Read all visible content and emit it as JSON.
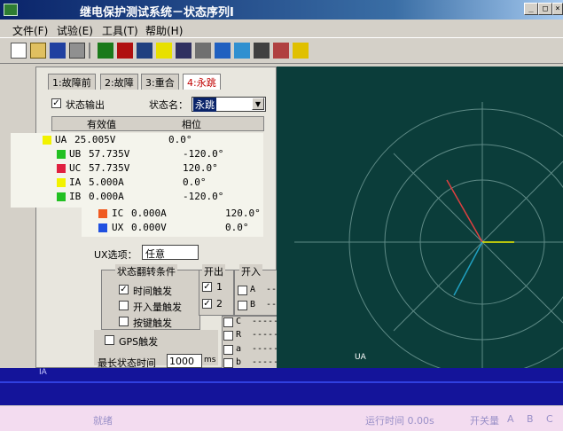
{
  "window": {
    "title": "继电保护测试系统－状态序列Ⅰ",
    "controls": [
      "minimize",
      "maximize",
      "close"
    ]
  },
  "menu": {
    "items": [
      {
        "label": "文件(F)"
      },
      {
        "label": "试验(E)"
      },
      {
        "label": "工具(T)"
      },
      {
        "label": "帮助(H)"
      }
    ]
  },
  "toolbar": {
    "icons": [
      "new-icon",
      "open-icon",
      "save-icon",
      "print-icon",
      "separator",
      "run-icon",
      "stop-icon",
      "pause-icon",
      "undo-icon",
      "redo-icon",
      "settings-icon",
      "chart-icon",
      "calc-icon",
      "report-icon",
      "tools-icon",
      "help-icon"
    ]
  },
  "tabs": [
    {
      "label": "1:故障前"
    },
    {
      "label": "2:故障"
    },
    {
      "label": "3:重合"
    },
    {
      "label": "4:永跳",
      "active": true
    }
  ],
  "state_output": {
    "label": "状态输出",
    "checked": true
  },
  "state_name": {
    "label": "状态名：",
    "value": "永跳"
  },
  "table": {
    "headers": [
      "有效值",
      "相位"
    ],
    "rows": [
      {
        "name": "UA",
        "value": "25.005V",
        "phase": "0.0°",
        "color": "#f2f200"
      },
      {
        "name": "UB",
        "value": "57.735V",
        "phase": "-120.0°",
        "color": "#22c022"
      },
      {
        "name": "UC",
        "value": "57.735V",
        "phase": "120.0°",
        "color": "#e02040"
      },
      {
        "name": "IA",
        "value": "5.000A",
        "phase": "0.0°",
        "color": "#f2f200"
      },
      {
        "name": "IB",
        "value": "0.000A",
        "phase": "-120.0°",
        "color": "#22c022"
      },
      {
        "name": "IC",
        "value": "0.000A",
        "phase": "120.0°",
        "color": "#f05a20"
      },
      {
        "name": "UX",
        "value": "0.000V",
        "phase": "0.0°",
        "color": "#2050e0"
      }
    ]
  },
  "ux_option": {
    "label": "UX选项：",
    "value": "任意"
  },
  "trigger": {
    "group_label": "状态翻转条件",
    "options": [
      {
        "label": "时间触发",
        "checked": true
      },
      {
        "label": "开入量触发",
        "checked": false
      },
      {
        "label": "按键触发",
        "checked": false
      },
      {
        "label": "GPS触发",
        "checked": false
      }
    ],
    "max_time_label": "最长状态时间",
    "max_time_value": "1000",
    "max_time_unit": "ms"
  },
  "binary_out": {
    "group_label": "开出",
    "items": [
      {
        "label": "1",
        "checked": true
      },
      {
        "label": "2",
        "checked": true
      }
    ]
  },
  "binary_in": {
    "group_label": "开入",
    "rows": [
      {
        "label": "A",
        "value": "------ms"
      },
      {
        "label": "B",
        "value": "------ms"
      },
      {
        "label": "C",
        "value": "------ms"
      },
      {
        "label": "R",
        "value": "------ms"
      },
      {
        "label": "a",
        "value": "------ms"
      },
      {
        "label": "b",
        "value": "------ms"
      }
    ]
  },
  "waveform": {
    "label_left": "IA",
    "label_right": "UA"
  },
  "status": {
    "ready": "就绪",
    "run_time": "运行时间 0.00s",
    "binary_label": "开关量",
    "binary_flags": [
      "A",
      "B",
      "C"
    ]
  }
}
